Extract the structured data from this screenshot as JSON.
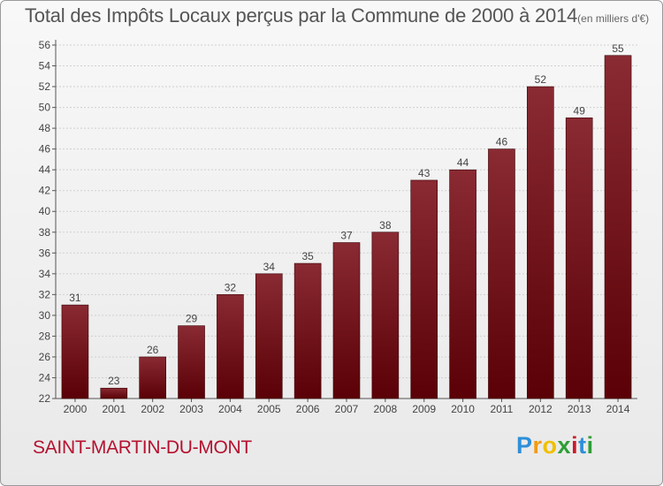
{
  "header": {
    "title": "Total des Impôts Locaux perçus par la Commune de 2000 à 2014",
    "unit": "(en milliers d'€)"
  },
  "footer": {
    "commune": "SAINT-MARTIN-DU-MONT",
    "logo": {
      "letters": [
        "P",
        "r",
        "o",
        "x",
        "i",
        "t",
        "i"
      ],
      "colors": [
        "#2e8fd9",
        "#f29b10",
        "#f0c000",
        "#2d9e35",
        "#cc1b2b",
        "#2e8fd9",
        "#2d9e35"
      ]
    }
  },
  "chart_data": {
    "type": "bar",
    "title": "Total des Impôts Locaux perçus par la Commune de 2000 à 2014",
    "xlabel": "",
    "ylabel": "",
    "categories": [
      "2000",
      "2001",
      "2002",
      "2003",
      "2004",
      "2005",
      "2006",
      "2007",
      "2008",
      "2009",
      "2010",
      "2011",
      "2012",
      "2013",
      "2014"
    ],
    "values": [
      31,
      23,
      26,
      29,
      32,
      34,
      35,
      37,
      38,
      43,
      44,
      46,
      52,
      49,
      55
    ],
    "ylim": [
      22,
      56
    ],
    "yticks": [
      22,
      24,
      26,
      28,
      30,
      32,
      34,
      36,
      38,
      40,
      42,
      44,
      46,
      48,
      50,
      52,
      54,
      56
    ],
    "grid": true,
    "bar_color_top": "#8a2a33",
    "bar_color_bottom": "#5a0006"
  }
}
